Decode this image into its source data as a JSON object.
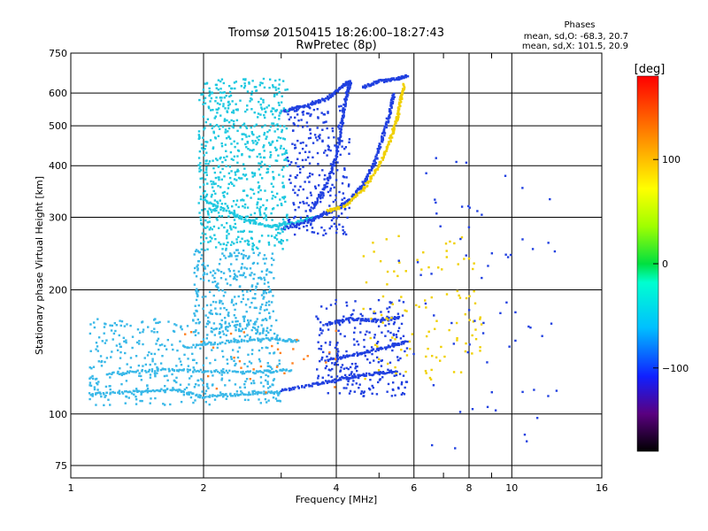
{
  "chart_data": {
    "type": "scatter",
    "title_line1": "Tromsø 20150415 18:26:00–18:27:43",
    "title_line2": "RwPretec (8p)",
    "xlabel": "Frequency [MHz]",
    "ylabel": "Stationary phase Virtual Height [km]",
    "x_scale": "log",
    "y_scale": "log",
    "xlim": [
      1,
      16
    ],
    "ylim": [
      70,
      750
    ],
    "x_ticks": [
      1,
      2,
      4,
      6,
      8,
      10,
      16
    ],
    "x_tick_labels": [
      "1",
      "2",
      "4",
      "6",
      "8",
      "10",
      "16"
    ],
    "x_minor_ticks": [
      3,
      5,
      7,
      9
    ],
    "y_ticks": [
      75,
      100,
      200,
      300,
      400,
      500,
      600,
      750
    ],
    "y_tick_labels": [
      "75",
      "100",
      "200",
      "300",
      "400",
      "500",
      "600",
      "750"
    ],
    "grid": true,
    "stats_header": "Phases",
    "stats_line1": "mean, sd,O: -68.3, 20.7",
    "stats_line2": "mean, sd,X: 101.5, 20.9",
    "colorbar": {
      "unit_label": "[deg]",
      "range": [
        -180,
        180
      ],
      "tick_values": [
        100,
        0,
        -100
      ],
      "tick_labels": [
        "100",
        "0",
        "−100"
      ]
    },
    "colors": {
      "cyan": "#1ec8e0",
      "light_blue": "#39b8e8",
      "blue": "#2040e0",
      "yellow": "#f0d000",
      "orange": "#ff8020"
    },
    "traces": [
      {
        "type": "curve",
        "name": "O-E-lower",
        "color": "light_blue",
        "pts": [
          [
            1.1,
            112
          ],
          [
            1.4,
            113
          ],
          [
            1.7,
            115
          ],
          [
            2.0,
            110
          ],
          [
            2.5,
            112
          ],
          [
            3.0,
            113
          ]
        ]
      },
      {
        "type": "curve",
        "name": "O-E-upper",
        "color": "light_blue",
        "pts": [
          [
            1.2,
            125
          ],
          [
            1.6,
            128
          ],
          [
            2.0,
            127
          ],
          [
            2.6,
            126
          ],
          [
            3.2,
            128
          ]
        ]
      },
      {
        "type": "curve",
        "name": "O-E-mid",
        "color": "light_blue",
        "pts": [
          [
            1.8,
            145
          ],
          [
            2.3,
            150
          ],
          [
            2.8,
            152
          ],
          [
            3.3,
            150
          ]
        ]
      },
      {
        "type": "curve",
        "name": "X-E-trace",
        "color": "blue",
        "pts": [
          [
            3.0,
            114
          ],
          [
            3.6,
            118
          ],
          [
            4.2,
            122
          ],
          [
            4.8,
            125
          ],
          [
            5.5,
            127
          ]
        ]
      },
      {
        "type": "curve",
        "name": "X-E-upper",
        "color": "blue",
        "pts": [
          [
            3.8,
            135
          ],
          [
            4.5,
            140
          ],
          [
            5.2,
            145
          ],
          [
            5.8,
            150
          ]
        ]
      },
      {
        "type": "curve",
        "name": "X-mid",
        "color": "blue",
        "pts": [
          [
            3.8,
            165
          ],
          [
            4.3,
            170
          ],
          [
            5.0,
            168
          ],
          [
            5.6,
            172
          ]
        ]
      },
      {
        "type": "curve",
        "name": "O-F-main",
        "color": "cyan",
        "pts": [
          [
            2.0,
            330
          ],
          [
            2.4,
            300
          ],
          [
            2.8,
            285
          ],
          [
            3.2,
            290
          ],
          [
            3.6,
            300
          ]
        ]
      },
      {
        "type": "curve",
        "name": "X-F-lower",
        "color": "blue",
        "pts": [
          [
            3.0,
            280
          ],
          [
            3.5,
            295
          ],
          [
            3.9,
            310
          ],
          [
            4.3,
            330
          ],
          [
            4.6,
            360
          ],
          [
            4.9,
            410
          ],
          [
            5.1,
            470
          ],
          [
            5.3,
            540
          ],
          [
            5.4,
            600
          ]
        ]
      },
      {
        "type": "curve",
        "name": "X-F-inner",
        "color": "blue",
        "pts": [
          [
            3.0,
            540
          ],
          [
            3.4,
            560
          ],
          [
            3.8,
            580
          ],
          [
            4.1,
            620
          ],
          [
            4.3,
            640
          ]
        ]
      },
      {
        "type": "curve",
        "name": "X-F-arc",
        "color": "blue",
        "pts": [
          [
            3.5,
            310
          ],
          [
            3.8,
            360
          ],
          [
            4.0,
            420
          ],
          [
            4.1,
            500
          ],
          [
            4.2,
            580
          ],
          [
            4.3,
            640
          ]
        ]
      },
      {
        "type": "curve",
        "name": "yellow-F",
        "color": "yellow",
        "pts": [
          [
            3.8,
            310
          ],
          [
            4.2,
            320
          ],
          [
            4.6,
            350
          ],
          [
            5.0,
            400
          ],
          [
            5.3,
            460
          ],
          [
            5.5,
            520
          ],
          [
            5.6,
            580
          ],
          [
            5.7,
            630
          ]
        ]
      },
      {
        "type": "curve",
        "name": "X-F-upper",
        "color": "blue",
        "pts": [
          [
            4.6,
            620
          ],
          [
            5.0,
            640
          ],
          [
            5.5,
            650
          ],
          [
            5.8,
            660
          ]
        ]
      },
      {
        "type": "cloud",
        "name": "O-spread-F",
        "color": "cyan",
        "xr": [
          1.95,
          3.1
        ],
        "yr": [
          250,
          650
        ],
        "n": 700
      },
      {
        "type": "cloud",
        "name": "O-spread-mid",
        "color": "light_blue",
        "xr": [
          1.9,
          2.9
        ],
        "yr": [
          155,
          250
        ],
        "n": 320
      },
      {
        "type": "cloud",
        "name": "O-spread-low",
        "color": "light_blue",
        "xr": [
          1.1,
          3.0
        ],
        "yr": [
          105,
          170
        ],
        "n": 420
      },
      {
        "type": "cloud",
        "name": "X-F-cloud",
        "color": "blue",
        "xr": [
          3.1,
          4.3
        ],
        "yr": [
          270,
          560
        ],
        "n": 260
      },
      {
        "type": "cloud",
        "name": "X-low-cloud",
        "color": "blue",
        "xr": [
          3.6,
          5.8
        ],
        "yr": [
          110,
          190
        ],
        "n": 240
      },
      {
        "type": "cloud",
        "name": "yellow-low",
        "color": "yellow",
        "xr": [
          4.6,
          8.6
        ],
        "yr": [
          120,
          270
        ],
        "n": 110
      },
      {
        "type": "cloud",
        "name": "sparse-blue",
        "color": "blue",
        "xr": [
          5.5,
          13.0
        ],
        "yr": [
          80,
          450
        ],
        "n": 70
      },
      {
        "type": "cloud",
        "name": "orange-low",
        "color": "orange",
        "xr": [
          1.8,
          4.0
        ],
        "yr": [
          110,
          160
        ],
        "n": 30
      }
    ]
  }
}
